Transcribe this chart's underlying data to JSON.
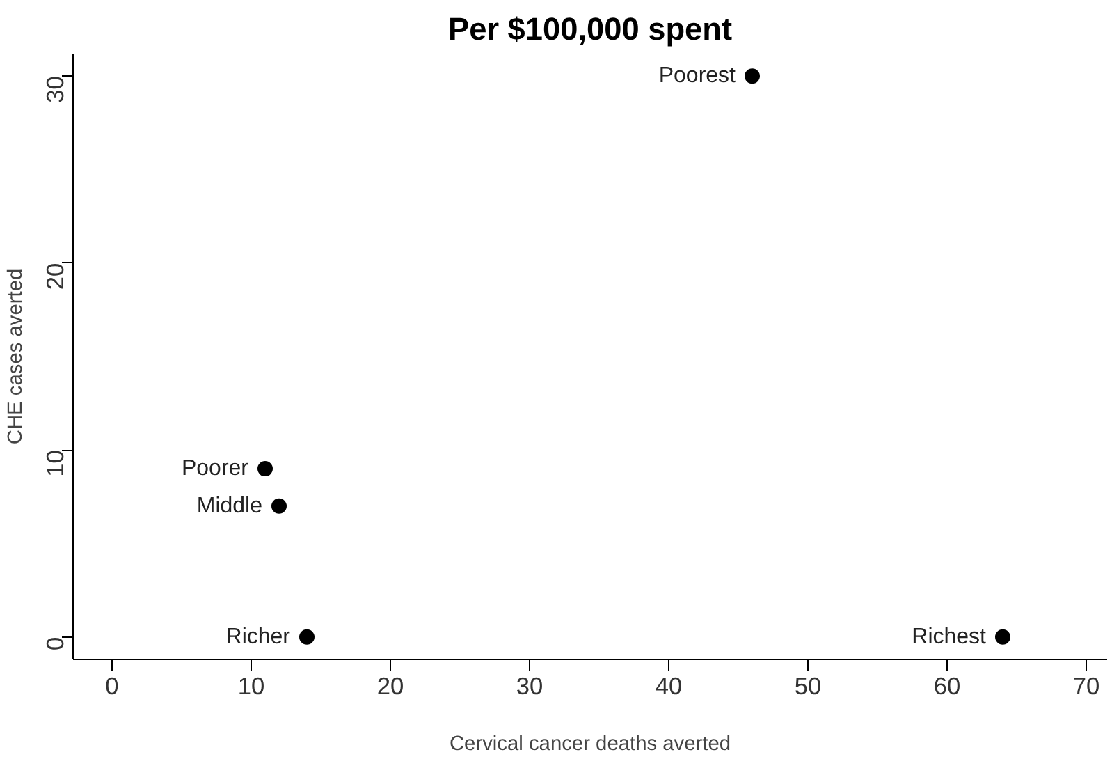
{
  "chart_data": {
    "type": "scatter",
    "title": "Per $100,000 spent",
    "xlabel": "Cervical cancer deaths averted",
    "ylabel": "CHE cases averted",
    "x": [
      46,
      11,
      12,
      14,
      64
    ],
    "values": [
      30,
      9,
      7,
      0,
      0
    ],
    "color": "#000000",
    "marker": "circle",
    "annotations": [
      {
        "text": "Poorest",
        "x": 46,
        "y": 30
      },
      {
        "text": "Poorer",
        "x": 11,
        "y": 9
      },
      {
        "text": "Middle",
        "x": 12,
        "y": 7
      },
      {
        "text": "Richer",
        "x": 14,
        "y": 0
      },
      {
        "text": "Richest",
        "x": 64,
        "y": 0
      }
    ],
    "xlim": [
      -2.8,
      71.5
    ],
    "ylim": [
      -1.2,
      31.2
    ],
    "xticks": [
      0,
      10,
      20,
      30,
      40,
      50,
      60,
      70
    ],
    "yticks": [
      0,
      10,
      20,
      30
    ],
    "grid": false
  }
}
